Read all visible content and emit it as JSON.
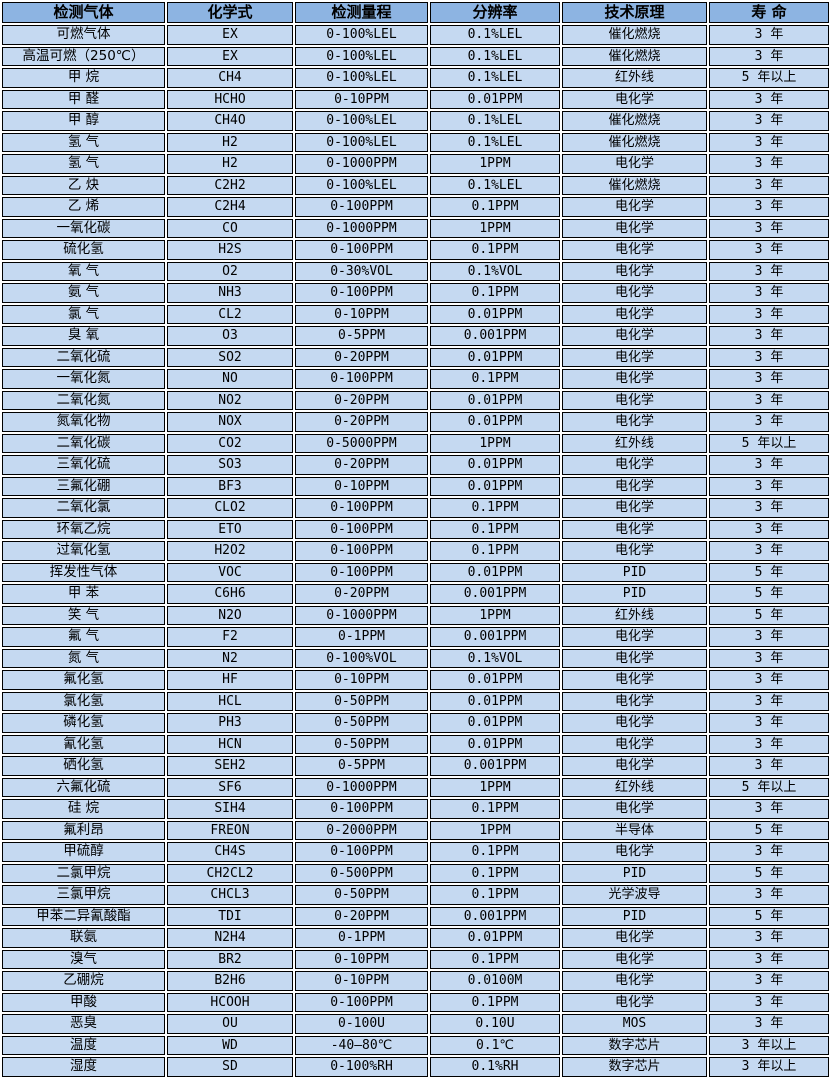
{
  "colors": {
    "header_bg": "#8db4e2",
    "row_bg": "#c5d9f1",
    "border": "#000000",
    "text": "#000000",
    "page_bg": "#ffffff"
  },
  "table": {
    "headers": [
      "检测气体",
      "化学式",
      "检测量程",
      "分辨率",
      "技术原理",
      "寿 命"
    ],
    "rows": [
      [
        "可燃气体",
        "EX",
        "0-100%LEL",
        "0.1%LEL",
        "催化燃烧",
        "3 年"
      ],
      [
        "高温可燃（250℃）",
        "EX",
        "0-100%LEL",
        "0.1%LEL",
        "催化燃烧",
        "3 年"
      ],
      [
        "甲 烷",
        "CH4",
        "0-100%LEL",
        "0.1%LEL",
        "红外线",
        "5 年以上"
      ],
      [
        "甲 醛",
        "HCHO",
        "0-10PPM",
        "0.01PPM",
        "电化学",
        "3 年"
      ],
      [
        "甲 醇",
        "CH4O",
        "0-100%LEL",
        "0.1%LEL",
        "催化燃烧",
        "3 年"
      ],
      [
        "氢 气",
        "H2",
        "0-100%LEL",
        "0.1%LEL",
        "催化燃烧",
        "3 年"
      ],
      [
        "氢 气",
        "H2",
        "0-1000PPM",
        "1PPM",
        "电化学",
        "3 年"
      ],
      [
        "乙 炔",
        "C2H2",
        "0-100%LEL",
        "0.1%LEL",
        "催化燃烧",
        "3 年"
      ],
      [
        "乙 烯",
        "C2H4",
        "0-100PPM",
        "0.1PPM",
        "电化学",
        "3 年"
      ],
      [
        "一氧化碳",
        "CO",
        "0-1000PPM",
        "1PPM",
        "电化学",
        "3 年"
      ],
      [
        "硫化氢",
        "H2S",
        "0-100PPM",
        "0.1PPM",
        "电化学",
        "3 年"
      ],
      [
        "氧 气",
        "O2",
        "0-30%VOL",
        "0.1%VOL",
        "电化学",
        "3 年"
      ],
      [
        "氨 气",
        "NH3",
        "0-100PPM",
        "0.1PPM",
        "电化学",
        "3 年"
      ],
      [
        "氯 气",
        "CL2",
        "0-10PPM",
        "0.01PPM",
        "电化学",
        "3 年"
      ],
      [
        "臭 氧",
        "O3",
        "0-5PPM",
        "0.001PPM",
        "电化学",
        "3 年"
      ],
      [
        "二氧化硫",
        "SO2",
        "0-20PPM",
        "0.01PPM",
        "电化学",
        "3 年"
      ],
      [
        "一氧化氮",
        "NO",
        "0-100PPM",
        "0.1PPM",
        "电化学",
        "3 年"
      ],
      [
        "二氧化氮",
        "NO2",
        "0-20PPM",
        "0.01PPM",
        "电化学",
        "3 年"
      ],
      [
        "氮氧化物",
        "NOX",
        "0-20PPM",
        "0.01PPM",
        "电化学",
        "3 年"
      ],
      [
        "二氧化碳",
        "CO2",
        "0-5000PPM",
        "1PPM",
        "红外线",
        "5 年以上"
      ],
      [
        "三氧化硫",
        "SO3",
        "0-20PPM",
        "0.01PPM",
        "电化学",
        "3 年"
      ],
      [
        "三氟化硼",
        "BF3",
        "0-10PPM",
        "0.01PPM",
        "电化学",
        "3 年"
      ],
      [
        "二氧化氯",
        "CLO2",
        "0-100PPM",
        "0.1PPM",
        "电化学",
        "3 年"
      ],
      [
        "环氧乙烷",
        "ETO",
        "0-100PPM",
        "0.1PPM",
        "电化学",
        "3 年"
      ],
      [
        "过氧化氢",
        "H2O2",
        "0-100PPM",
        "0.1PPM",
        "电化学",
        "3 年"
      ],
      [
        "挥发性气体",
        "VOC",
        "0-100PPM",
        "0.01PPM",
        "PID",
        "5 年"
      ],
      [
        "甲 苯",
        "C6H6",
        "0-20PPM",
        "0.001PPM",
        "PID",
        "5 年"
      ],
      [
        "笑 气",
        "N2O",
        "0-1000PPM",
        "1PPM",
        "红外线",
        "5 年"
      ],
      [
        "氟 气",
        "F2",
        "0-1PPM",
        "0.001PPM",
        "电化学",
        "3 年"
      ],
      [
        "氮 气",
        "N2",
        "0-100%VOL",
        "0.1%VOL",
        "电化学",
        "3 年"
      ],
      [
        "氟化氢",
        "HF",
        "0-10PPM",
        "0.01PPM",
        "电化学",
        "3 年"
      ],
      [
        "氯化氢",
        "HCL",
        "0-50PPM",
        "0.01PPM",
        "电化学",
        "3 年"
      ],
      [
        "磷化氢",
        "PH3",
        "0-50PPM",
        "0.01PPM",
        "电化学",
        "3 年"
      ],
      [
        "氰化氢",
        "HCN",
        "0-50PPM",
        "0.01PPM",
        "电化学",
        "3 年"
      ],
      [
        "硒化氢",
        "SEH2",
        "0-5PPM",
        "0.001PPM",
        "电化学",
        "3 年"
      ],
      [
        "六氟化硫",
        "SF6",
        "0-1000PPM",
        "1PPM",
        "红外线",
        "5 年以上"
      ],
      [
        "硅 烷",
        "SIH4",
        "0-100PPM",
        "0.1PPM",
        "电化学",
        "3 年"
      ],
      [
        "氟利昂",
        "FREON",
        "0-2000PPM",
        "1PPM",
        "半导体",
        "5 年"
      ],
      [
        "甲硫醇",
        "CH4S",
        "0-100PPM",
        "0.1PPM",
        "电化学",
        "3 年"
      ],
      [
        "二氯甲烷",
        "CH2CL2",
        "0-500PPM",
        "0.1PPM",
        "PID",
        "5 年"
      ],
      [
        "三氯甲烷",
        "CHCL3",
        "0-50PPM",
        "0.1PPM",
        "光学波导",
        "3 年"
      ],
      [
        "甲苯二异氰酸酯",
        "TDI",
        "0-20PPM",
        "0.001PPM",
        "PID",
        "5 年"
      ],
      [
        "联氨",
        "N2H4",
        "0-1PPM",
        "0.01PPM",
        "电化学",
        "3 年"
      ],
      [
        "溴气",
        "BR2",
        "0-10PPM",
        "0.1PPM",
        "电化学",
        "3 年"
      ],
      [
        "乙硼烷",
        "B2H6",
        "0-10PPM",
        "0.0100M",
        "电化学",
        "3 年"
      ],
      [
        "甲酸",
        "HCOOH",
        "0-100PPM",
        "0.1PPM",
        "电化学",
        "3 年"
      ],
      [
        "恶臭",
        "OU",
        "0-100U",
        "0.10U",
        "MOS",
        "3 年"
      ],
      [
        "温度",
        "WD",
        "-40—80℃",
        "0.1℃",
        "数字芯片",
        "3 年以上"
      ],
      [
        "湿度",
        "SD",
        "0-100%RH",
        "0.1%RH",
        "数字芯片",
        "3 年以上"
      ]
    ]
  }
}
